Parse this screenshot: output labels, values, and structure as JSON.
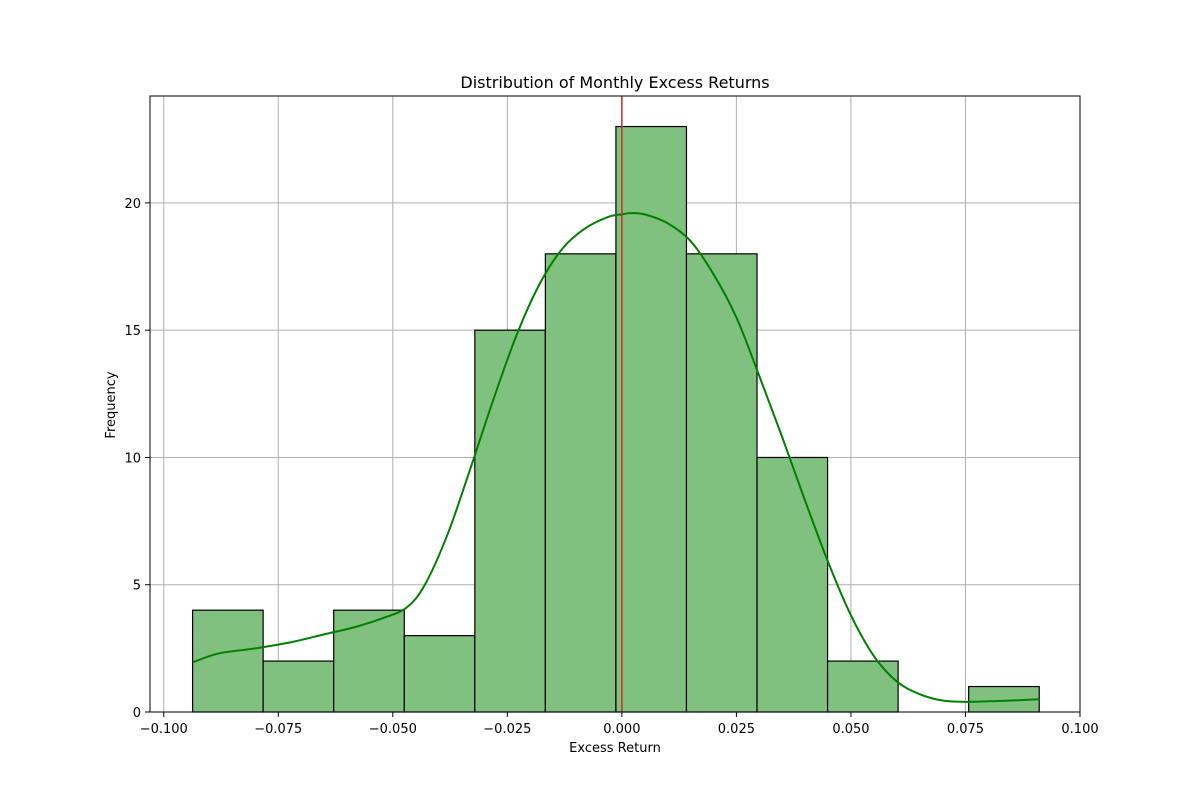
{
  "chart_data": {
    "type": "bar",
    "title": "Distribution of Monthly Excess Returns",
    "xlabel": "Excess Return",
    "ylabel": "Frequency",
    "xlim": [
      -0.103,
      0.1
    ],
    "ylim": [
      0,
      24.2
    ],
    "xticks": [
      -0.1,
      -0.075,
      -0.05,
      -0.025,
      0.0,
      0.025,
      0.05,
      0.075,
      0.1
    ],
    "xtick_labels": [
      "−0.100",
      "−0.075",
      "−0.050",
      "−0.025",
      "0.000",
      "0.025",
      "0.050",
      "0.075",
      "0.100"
    ],
    "yticks": [
      0,
      5,
      10,
      15,
      20
    ],
    "ytick_labels": [
      "0",
      "5",
      "10",
      "15",
      "20"
    ],
    "grid": true,
    "bins": [
      {
        "x0": -0.0937,
        "x1": -0.0783,
        "count": 4
      },
      {
        "x0": -0.0783,
        "x1": -0.0629,
        "count": 2
      },
      {
        "x0": -0.0629,
        "x1": -0.0475,
        "count": 4
      },
      {
        "x0": -0.0475,
        "x1": -0.0321,
        "count": 3
      },
      {
        "x0": -0.0321,
        "x1": -0.0167,
        "count": 15
      },
      {
        "x0": -0.0167,
        "x1": -0.0013,
        "count": 18
      },
      {
        "x0": -0.0013,
        "x1": 0.0141,
        "count": 23
      },
      {
        "x0": 0.0141,
        "x1": 0.0295,
        "count": 18
      },
      {
        "x0": 0.0295,
        "x1": 0.0449,
        "count": 10
      },
      {
        "x0": 0.0449,
        "x1": 0.0603,
        "count": 2
      },
      {
        "x0": 0.0603,
        "x1": 0.0757,
        "count": 0
      },
      {
        "x0": 0.0757,
        "x1": 0.0911,
        "count": 1
      }
    ],
    "kde": {
      "x": [
        -0.0937,
        -0.088,
        -0.08,
        -0.072,
        -0.065,
        -0.058,
        -0.052,
        -0.047,
        -0.043,
        -0.038,
        -0.033,
        -0.028,
        -0.023,
        -0.018,
        -0.013,
        -0.008,
        -0.003,
        0.0,
        0.002,
        0.005,
        0.01,
        0.015,
        0.02,
        0.025,
        0.03,
        0.035,
        0.04,
        0.045,
        0.05,
        0.055,
        0.06,
        0.065,
        0.07,
        0.075,
        0.08,
        0.085,
        0.0911
      ],
      "y": [
        1.95,
        2.3,
        2.5,
        2.75,
        3.05,
        3.35,
        3.7,
        4.1,
        5.0,
        7.0,
        9.6,
        12.3,
        14.8,
        16.8,
        18.2,
        19.0,
        19.45,
        19.55,
        19.6,
        19.55,
        19.2,
        18.5,
        17.2,
        15.5,
        13.2,
        10.8,
        8.3,
        5.9,
        3.8,
        2.2,
        1.2,
        0.7,
        0.45,
        0.4,
        0.42,
        0.45,
        0.5
      ]
    },
    "vline": {
      "x": 0.0,
      "color": "#d62728"
    },
    "colors": {
      "bar_fill": "#81c17f",
      "bar_edge": "#000000",
      "kde_line": "#008000",
      "grid": "#b0b0b0"
    }
  }
}
